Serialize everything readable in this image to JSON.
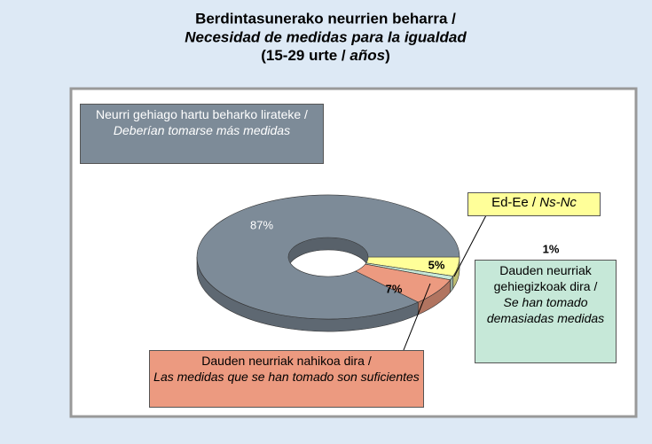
{
  "chart_data": {
    "type": "pie",
    "title": {
      "line1": "Berdintasunerako neurrien beharra  /",
      "line2": "Necesidad de medidas para la igualdad",
      "line3": [
        "(15-29 urte / ",
        "años",
        ")"
      ]
    },
    "categories": [
      {
        "eu": "Ed-Ee /",
        "es": "Ns-Nc"
      },
      {
        "eu": "Dauden neurriak gehiegizkoak dira /",
        "es": "Se han tomado demasiadas medidas"
      },
      {
        "eu": "Dauden neurriak nahikoa dira /",
        "es": "Las medidas que se han tomado son suficientes"
      },
      {
        "eu": "Neurri gehiago hartu beharko lirateke /",
        "es": "Deberían tomarse más medidas"
      }
    ],
    "values": [
      5,
      1,
      7,
      87
    ],
    "value_labels": [
      "5%",
      "1%",
      "7%",
      "87%"
    ],
    "colors": [
      "#ffff99",
      "#c6e8d8",
      "#ec9a80",
      "#7d8b98"
    ]
  }
}
